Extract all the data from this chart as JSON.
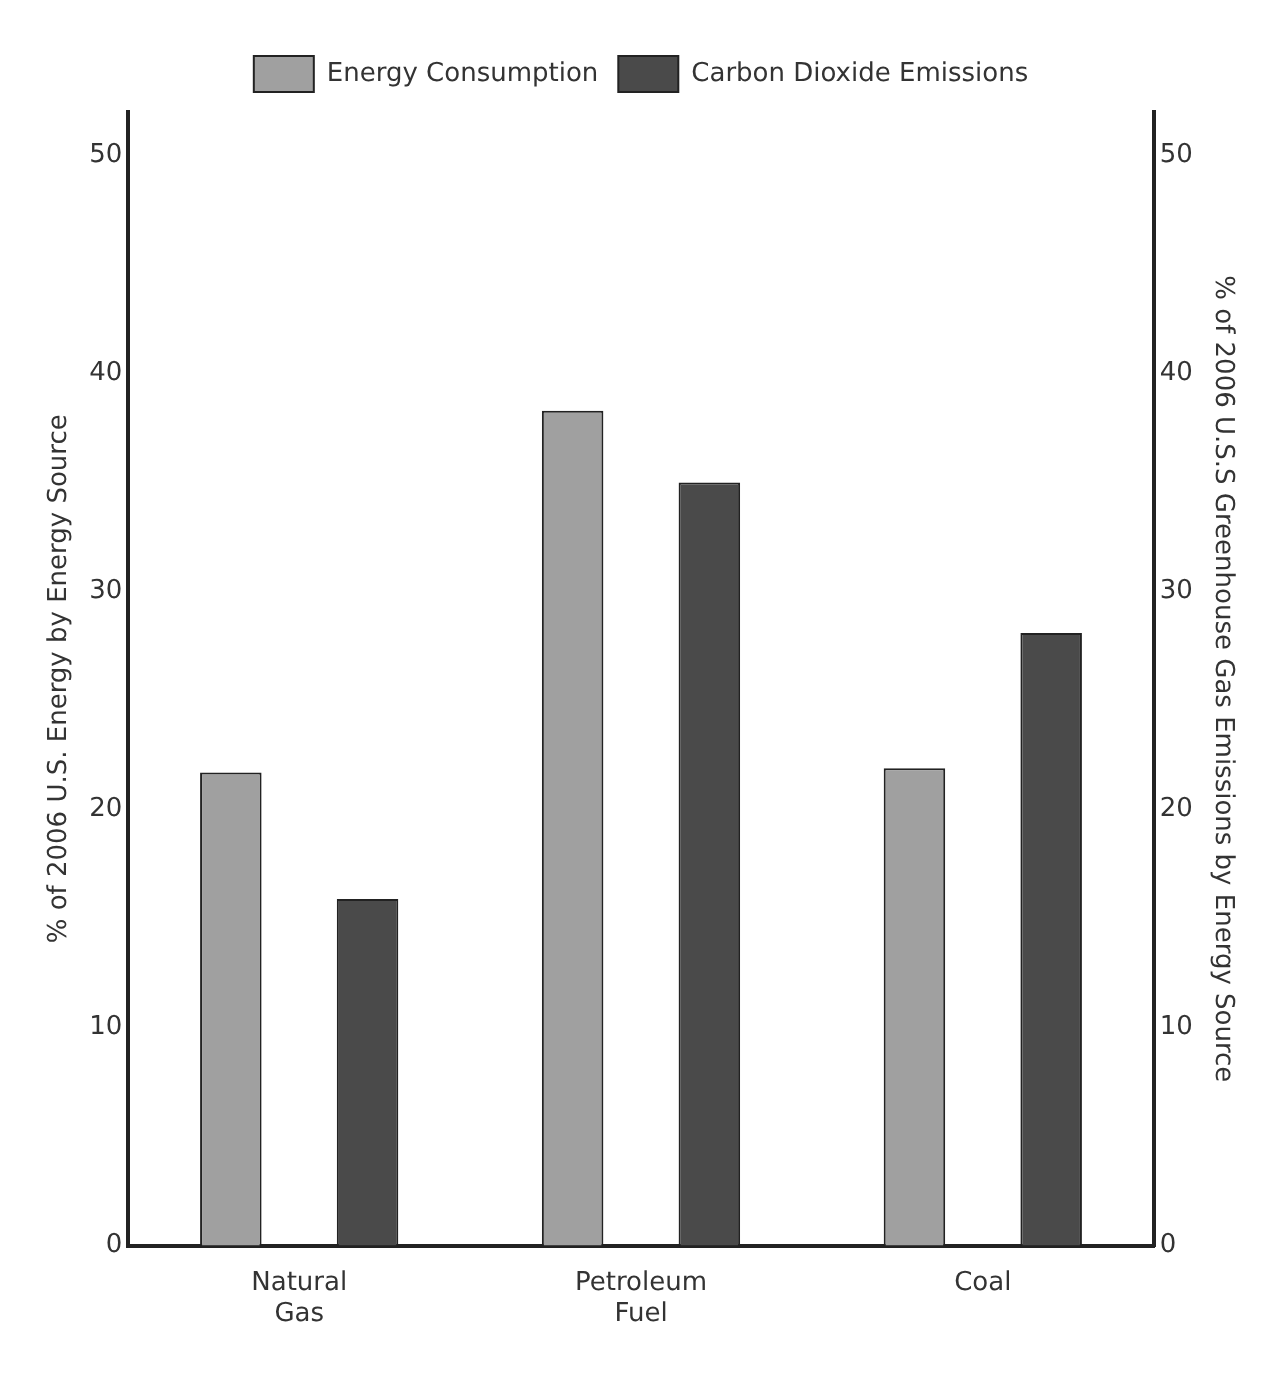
{
  "chart_data": {
    "type": "bar",
    "categories": [
      "Natural\nGas",
      "Petroleum\nFuel",
      "Coal"
    ],
    "series": [
      {
        "name": "Energy Consumption",
        "color": "#a0a0a0",
        "values": [
          21.7,
          38.3,
          21.9
        ]
      },
      {
        "name": "Carbon Dioxide Emissions",
        "color": "#4a4a4a",
        "values": [
          15.9,
          35.0,
          28.1
        ]
      }
    ],
    "ylabel": "% of 2006 U.S. Energy by Energy Source",
    "y2label": "% of 2006 U.S.S Greenhouse Gas Emissions by Energy Source",
    "ylim": [
      0,
      52
    ],
    "yticks": [
      0,
      10,
      20,
      30,
      40,
      50
    ],
    "y2lim": [
      0,
      52
    ],
    "y2ticks": [
      0,
      10,
      20,
      30,
      40,
      50
    ],
    "grid": false,
    "legend": "top"
  }
}
